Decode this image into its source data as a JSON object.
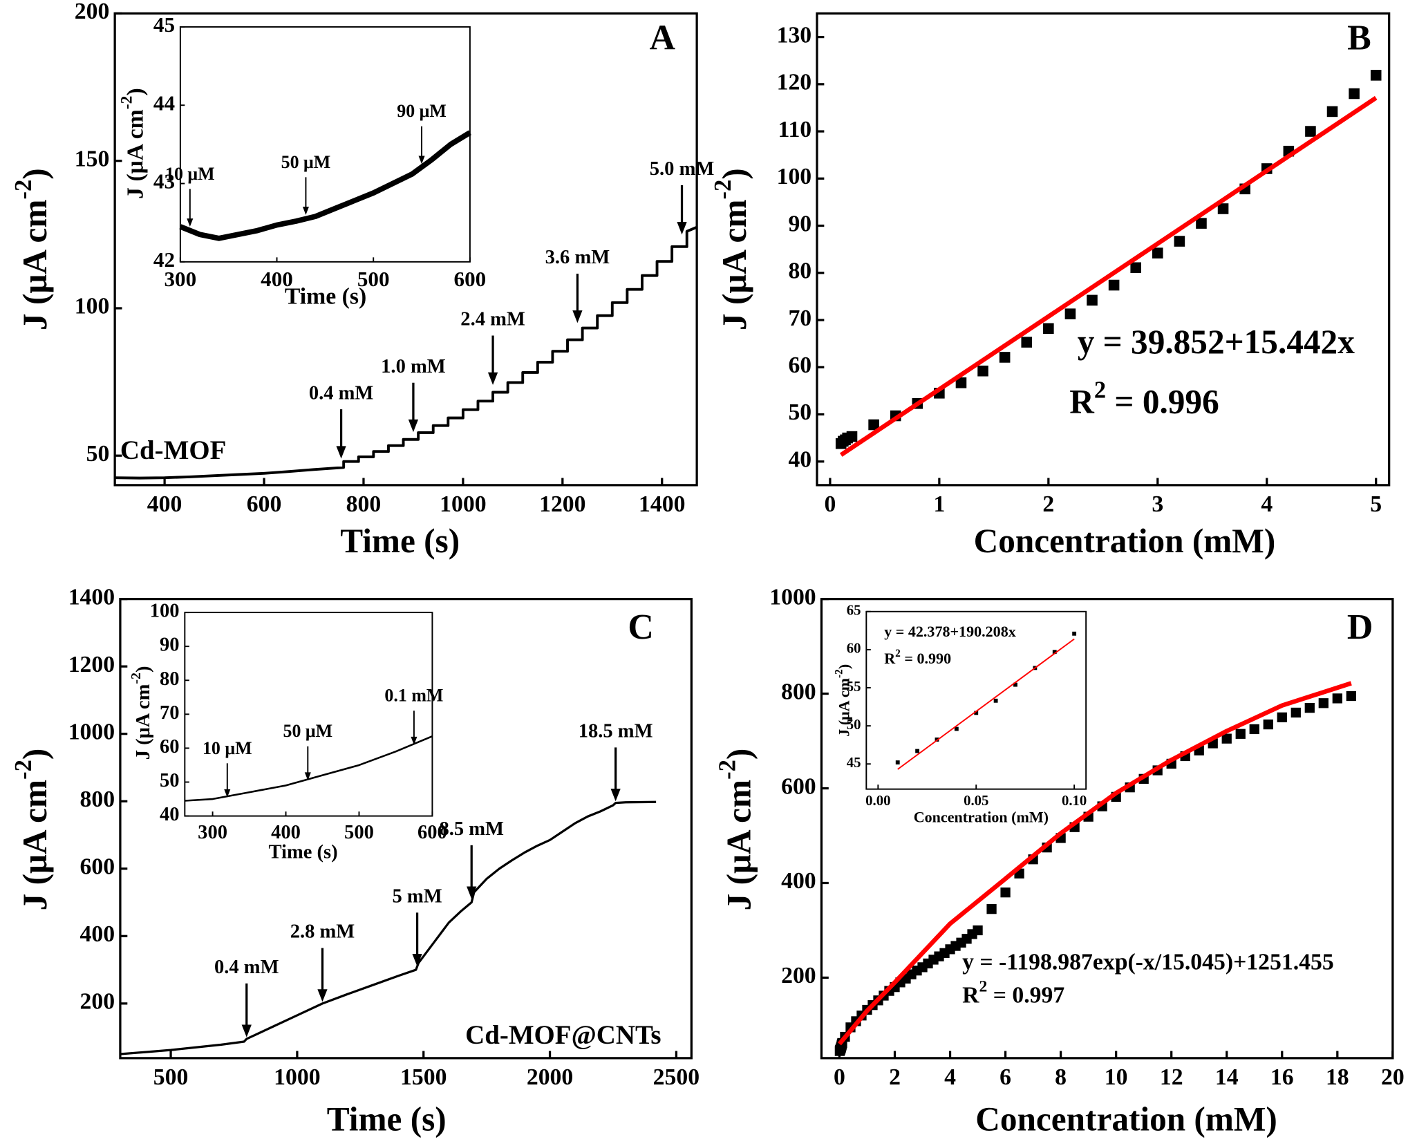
{
  "chart_data": [
    {
      "type": "line",
      "panel_label": "A",
      "panel_label_color": "#1a1a8c",
      "sample_label": "Cd-MOF",
      "sample_label_color": "#ff0000",
      "xlabel": "Time (s)",
      "ylabel": [
        "J (μA cm",
        "-2",
        ")"
      ],
      "xlim": [
        300,
        1470
      ],
      "ylim": [
        40,
        200
      ],
      "xticks": [
        400,
        600,
        800,
        1000,
        1200,
        1400
      ],
      "yticks": [
        50,
        100,
        150,
        200
      ],
      "series": [
        {
          "type": "line",
          "color": "#000000",
          "x": [
            300,
            350,
            400,
            450,
            500,
            550,
            600,
            650,
            700,
            760,
            760,
            790,
            790,
            820,
            820,
            850,
            850,
            880,
            880,
            910,
            910,
            940,
            940,
            970,
            970,
            1000,
            1000,
            1030,
            1030,
            1060,
            1060,
            1090,
            1090,
            1120,
            1120,
            1150,
            1150,
            1180,
            1180,
            1210,
            1210,
            1240,
            1240,
            1270,
            1270,
            1300,
            1300,
            1330,
            1330,
            1360,
            1360,
            1390,
            1390,
            1420,
            1420,
            1450,
            1450,
            1470
          ],
          "values": [
            42.5,
            42.4,
            42.5,
            42.8,
            43.2,
            43.6,
            44.0,
            44.6,
            45.3,
            46.0,
            48.0,
            48.0,
            49.6,
            49.6,
            51.4,
            51.4,
            53.4,
            53.4,
            55.5,
            55.5,
            57.8,
            57.8,
            60.2,
            60.2,
            62.8,
            62.8,
            65.6,
            65.6,
            68.5,
            68.5,
            71.5,
            71.5,
            74.8,
            74.8,
            78.2,
            78.2,
            81.7,
            81.7,
            85.4,
            85.4,
            89.3,
            89.3,
            93.3,
            93.3,
            97.5,
            97.5,
            101.9,
            101.9,
            106.4,
            106.4,
            111.1,
            111.1,
            115.9,
            115.9,
            120.9,
            120.9,
            126.1,
            127.5
          ]
        }
      ],
      "annotations": [
        {
          "text": "0.4 mM",
          "x": 755,
          "y": 49
        },
        {
          "text": "1.0 mM",
          "x": 900,
          "y": 58
        },
        {
          "text": "2.4 mM",
          "x": 1060,
          "y": 74
        },
        {
          "text": "3.6 mM",
          "x": 1230,
          "y": 95
        },
        {
          "text": "5.0 mM",
          "x": 1440,
          "y": 125
        }
      ],
      "insets": [
        {
          "type": "line",
          "xlabel": "Time (s)",
          "ylabel": [
            "J (μA cm",
            "-2",
            ")"
          ],
          "xlim": [
            300,
            600
          ],
          "ylim": [
            42,
            45
          ],
          "xticks": [
            300,
            400,
            500,
            600
          ],
          "yticks": [
            42,
            43,
            44,
            45
          ],
          "series": [
            {
              "type": "line",
              "color": "#000000",
              "x": [
                300,
                320,
                340,
                360,
                380,
                400,
                420,
                440,
                460,
                480,
                500,
                520,
                540,
                560,
                580,
                600
              ],
              "values": [
                42.45,
                42.35,
                42.3,
                42.35,
                42.4,
                42.47,
                42.52,
                42.58,
                42.68,
                42.78,
                42.88,
                43.0,
                43.12,
                43.3,
                43.5,
                43.65
              ]
            }
          ],
          "annotations": [
            {
              "text": "10 μM",
              "x": 310,
              "y": 42.45
            },
            {
              "text": "50 μM",
              "x": 430,
              "y": 42.6
            },
            {
              "text": "90 μM",
              "x": 550,
              "y": 43.25
            }
          ]
        }
      ]
    },
    {
      "type": "scatter",
      "panel_label": "B",
      "panel_label_color": "#1a1a8c",
      "xlabel": "Concentration (mM)",
      "ylabel": [
        "J (μA cm",
        "-2",
        ")"
      ],
      "xlim": [
        -0.12,
        5.12
      ],
      "ylim": [
        35,
        135
      ],
      "xticks": [
        0,
        1,
        2,
        3,
        4,
        5
      ],
      "yticks": [
        40,
        50,
        60,
        70,
        80,
        90,
        100,
        110,
        120,
        130
      ],
      "equation": "y = 39.852+15.442x",
      "r_squared": [
        "R",
        "2",
        " = 0.996"
      ],
      "series": [
        {
          "type": "scatter",
          "color": "#000000",
          "x": [
            0.1,
            0.12,
            0.14,
            0.16,
            0.2,
            0.4,
            0.6,
            0.8,
            1.0,
            1.2,
            1.4,
            1.6,
            1.8,
            2.0,
            2.2,
            2.4,
            2.6,
            2.8,
            3.0,
            3.2,
            3.4,
            3.6,
            3.8,
            4.0,
            4.2,
            4.4,
            4.6,
            4.8,
            5.0
          ],
          "values": [
            43.8,
            44.3,
            44.6,
            45.0,
            45.3,
            47.8,
            49.7,
            52.3,
            54.5,
            56.7,
            59.2,
            62.1,
            65.3,
            68.2,
            71.3,
            74.2,
            77.4,
            81.1,
            84.2,
            86.7,
            90.5,
            93.6,
            97.8,
            102.1,
            105.8,
            110.0,
            114.2,
            118.0,
            121.9
          ]
        },
        {
          "type": "line",
          "color": "#ff0000",
          "x": [
            0.1,
            5.0
          ],
          "values": [
            41.4,
            117.1
          ]
        }
      ]
    },
    {
      "type": "line",
      "panel_label": "C",
      "panel_label_color": "#1a1a8c",
      "sample_label": "Cd-MOF@CNTs",
      "sample_label_color": "#ff0000",
      "xlabel": "Time (s)",
      "ylabel": [
        "J (μA cm",
        "-2",
        ")"
      ],
      "xlim": [
        300,
        2560
      ],
      "ylim": [
        38,
        1400
      ],
      "xticks": [
        500,
        1000,
        1500,
        2000,
        2500
      ],
      "yticks": [
        200,
        400,
        600,
        800,
        1000,
        1200,
        1400
      ],
      "series": [
        {
          "type": "line",
          "color": "#000000",
          "x": [
            300,
            400,
            500,
            600,
            700,
            790,
            800,
            900,
            1000,
            1100,
            1200,
            1300,
            1400,
            1470,
            1480,
            1500,
            1550,
            1600,
            1650,
            1690,
            1700,
            1750,
            1800,
            1850,
            1900,
            1950,
            2000,
            2050,
            2100,
            2150,
            2200,
            2250,
            2260,
            2300,
            2420
          ],
          "values": [
            50,
            56,
            62,
            70,
            78,
            87,
            95,
            130,
            165,
            200,
            228,
            255,
            282,
            300,
            320,
            340,
            390,
            440,
            475,
            500,
            530,
            570,
            600,
            625,
            648,
            668,
            685,
            710,
            735,
            755,
            770,
            788,
            795,
            797,
            798
          ]
        }
      ],
      "annotations": [
        {
          "text": "0.4 mM",
          "x": 800,
          "y": 100
        },
        {
          "text": "2.8 mM",
          "x": 1100,
          "y": 205
        },
        {
          "text": "5 mM",
          "x": 1475,
          "y": 310
        },
        {
          "text": "8.5 mM",
          "x": 1690,
          "y": 510
        },
        {
          "text": "18.5 mM",
          "x": 2260,
          "y": 800
        }
      ],
      "insets": [
        {
          "type": "line",
          "xlabel": "Time (s)",
          "ylabel": [
            "J (μA cm",
            "-2",
            ")"
          ],
          "xlim": [
            262,
            600
          ],
          "ylim": [
            40,
            100
          ],
          "xticks": [
            300,
            400,
            500,
            600
          ],
          "yticks": [
            40,
            50,
            60,
            70,
            80,
            90,
            100
          ],
          "series": [
            {
              "type": "line",
              "color": "#000000",
              "x": [
                262,
                300,
                350,
                400,
                450,
                500,
                550,
                600
              ],
              "values": [
                44.5,
                45,
                47,
                49,
                52,
                55,
                59,
                63.5
              ]
            }
          ],
          "annotations": [
            {
              "text": "10 μM",
              "x": 320,
              "y": 45.5
            },
            {
              "text": "50 μM",
              "x": 430,
              "y": 50.5
            },
            {
              "text": "0.1 mM",
              "x": 575,
              "y": 61
            }
          ]
        }
      ]
    },
    {
      "type": "scatter",
      "panel_label": "D",
      "panel_label_color": "#1a1a8c",
      "xlabel": "Concentration (mM)",
      "ylabel": [
        "J (μA cm",
        "-2",
        ")"
      ],
      "xlim": [
        -0.65,
        20
      ],
      "ylim": [
        30,
        1000
      ],
      "xticks": [
        0,
        2,
        4,
        6,
        8,
        10,
        12,
        14,
        16,
        18,
        20
      ],
      "yticks": [
        200,
        400,
        600,
        800,
        1000
      ],
      "equation": "y = -1198.987exp(-x/15.045)+1251.455",
      "r_squared": [
        "R",
        "2",
        " = 0.997"
      ],
      "series": [
        {
          "type": "scatter",
          "color": "#000000",
          "x": [
            0.01,
            0.02,
            0.03,
            0.04,
            0.05,
            0.06,
            0.07,
            0.08,
            0.09,
            0.1,
            0.2,
            0.4,
            0.6,
            0.8,
            1.0,
            1.2,
            1.4,
            1.6,
            1.8,
            2.0,
            2.2,
            2.4,
            2.6,
            2.8,
            3.0,
            3.2,
            3.4,
            3.6,
            3.8,
            4.0,
            4.2,
            4.4,
            4.6,
            4.8,
            5.0,
            5.5,
            6.0,
            6.5,
            7.0,
            7.5,
            8.0,
            8.5,
            9.0,
            9.5,
            10,
            10.5,
            11,
            11.5,
            12,
            12.5,
            13,
            13.5,
            14,
            14.5,
            15,
            15.5,
            16,
            16.5,
            17,
            17.5,
            18,
            18.5
          ],
          "values": [
            45,
            47,
            48,
            50,
            51,
            53,
            55,
            58,
            60,
            62,
            75,
            95,
            108,
            120,
            132,
            142,
            152,
            162,
            172,
            180,
            190,
            198,
            207,
            215,
            222,
            230,
            238,
            245,
            252,
            260,
            267,
            274,
            282,
            292,
            300,
            345,
            380,
            420,
            450,
            475,
            495,
            518,
            540,
            562,
            582,
            602,
            620,
            638,
            652,
            668,
            680,
            695,
            705,
            715,
            725,
            735,
            750,
            760,
            770,
            780,
            790,
            795
          ]
        },
        {
          "type": "line",
          "color": "#ff0000",
          "x": [
            0,
            1,
            2,
            4,
            6,
            8,
            10,
            12,
            14,
            16,
            18.5
          ],
          "values": [
            60,
            130,
            190,
            314,
            409,
            505,
            590,
            660,
            721,
            775,
            822
          ]
        }
      ],
      "insets": [
        {
          "type": "scatter",
          "xlabel": "Concentration (mM)",
          "ylabel": [
            "J (μA cm",
            "-2",
            ")"
          ],
          "xlim": [
            -0.006,
            0.106
          ],
          "ylim": [
            41.7,
            65
          ],
          "xticks": [
            {
              "value": 0,
              "label": "0.00"
            },
            {
              "value": 0.05,
              "label": "0.05"
            },
            {
              "value": 0.1,
              "label": "0.10"
            }
          ],
          "yticks": [
            45,
            50,
            55,
            60,
            65
          ],
          "equation": "y = 42.378+190.208x",
          "r_squared": [
            "R",
            "2",
            " = 0.990"
          ],
          "series": [
            {
              "type": "scatter",
              "color": "#000000",
              "x": [
                0.01,
                0.02,
                0.03,
                0.04,
                0.05,
                0.06,
                0.07,
                0.08,
                0.09,
                0.1
              ],
              "values": [
                45.2,
                46.7,
                48.2,
                49.6,
                51.7,
                53.3,
                55.4,
                57.6,
                59.7,
                62.1
              ]
            },
            {
              "type": "line",
              "color": "#ff0000",
              "x": [
                0.01,
                0.1
              ],
              "values": [
                44.3,
                61.4
              ]
            }
          ]
        }
      ]
    }
  ]
}
